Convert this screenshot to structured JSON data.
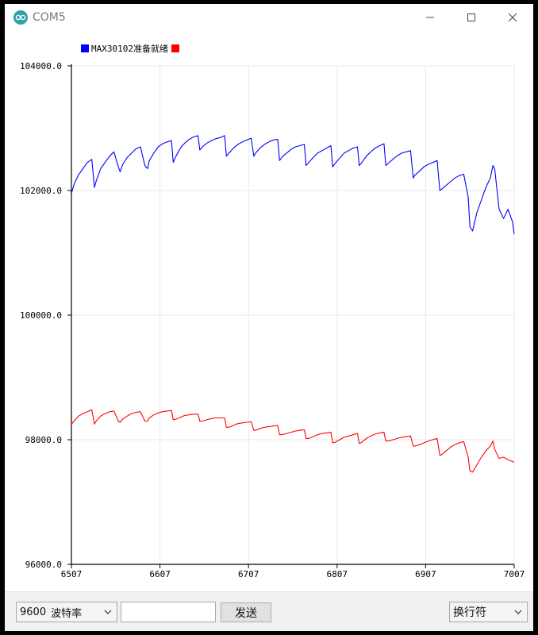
{
  "window": {
    "title": "COM5",
    "icons": {
      "app": "arduino-logo-icon",
      "minimize": "minimize-icon",
      "maximize": "maximize-icon",
      "close": "close-icon"
    }
  },
  "toolbar": {
    "baud_rate_value": "9600",
    "baud_rate_label": "波特率",
    "message_input_value": "",
    "send_label": "发送",
    "line_ending_label": "换行符"
  },
  "colors": {
    "series_1": "#0000ff",
    "series_2": "#ff0000",
    "axis": "#000000",
    "grid": "#e8e8e8"
  },
  "chart_data": {
    "type": "line",
    "title": "",
    "xlabel": "",
    "ylabel": "",
    "xlim": [
      6507,
      7007
    ],
    "ylim": [
      96000,
      104000
    ],
    "x_ticks": [
      "6507",
      "6607",
      "6707",
      "6807",
      "6907",
      "7007"
    ],
    "y_ticks": [
      "96000.0",
      "98000.0",
      "100000.0",
      "102000.0",
      "104000.0"
    ],
    "grid": true,
    "legend": "top-left",
    "legend_text": "MAX30102准备就绪",
    "series": [
      {
        "name": "MAX30102准备就绪",
        "color": "#0000ff",
        "x": [
          6507,
          6510,
          6515,
          6520,
          6525,
          6530,
          6533,
          6535,
          6540,
          6545,
          6550,
          6555,
          6560,
          6562,
          6565,
          6570,
          6575,
          6580,
          6585,
          6590,
          6593,
          6595,
          6600,
          6605,
          6610,
          6615,
          6620,
          6622,
          6625,
          6630,
          6635,
          6640,
          6645,
          6650,
          6652,
          6655,
          6660,
          6665,
          6670,
          6675,
          6680,
          6682,
          6685,
          6690,
          6695,
          6700,
          6705,
          6710,
          6713,
          6715,
          6720,
          6725,
          6730,
          6735,
          6740,
          6742,
          6745,
          6750,
          6755,
          6760,
          6765,
          6770,
          6772,
          6775,
          6780,
          6785,
          6790,
          6795,
          6800,
          6802,
          6805,
          6810,
          6815,
          6820,
          6825,
          6830,
          6832,
          6835,
          6840,
          6845,
          6850,
          6855,
          6860,
          6862,
          6865,
          6870,
          6875,
          6880,
          6885,
          6890,
          6893,
          6895,
          6900,
          6905,
          6910,
          6915,
          6920,
          6923,
          6925,
          6930,
          6935,
          6940,
          6945,
          6950,
          6955,
          6957,
          6960,
          6965,
          6970,
          6975,
          6980,
          6983,
          6985,
          6990,
          6995,
          7000,
          7005,
          7007
        ],
        "y": [
          101950,
          102100,
          102250,
          102350,
          102450,
          102500,
          102050,
          102150,
          102350,
          102450,
          102550,
          102620,
          102380,
          102300,
          102420,
          102530,
          102600,
          102670,
          102700,
          102400,
          102350,
          102480,
          102600,
          102700,
          102750,
          102780,
          102800,
          102450,
          102550,
          102680,
          102760,
          102820,
          102860,
          102880,
          102650,
          102700,
          102760,
          102800,
          102830,
          102850,
          102880,
          102550,
          102600,
          102680,
          102740,
          102780,
          102810,
          102840,
          102550,
          102600,
          102680,
          102740,
          102780,
          102810,
          102820,
          102480,
          102540,
          102600,
          102660,
          102700,
          102720,
          102740,
          102400,
          102450,
          102530,
          102600,
          102640,
          102680,
          102720,
          102380,
          102440,
          102520,
          102600,
          102640,
          102680,
          102700,
          102400,
          102450,
          102550,
          102620,
          102680,
          102720,
          102750,
          102400,
          102440,
          102500,
          102560,
          102600,
          102620,
          102640,
          102200,
          102250,
          102310,
          102380,
          102420,
          102450,
          102480,
          102000,
          102020,
          102080,
          102140,
          102200,
          102240,
          102260,
          101900,
          101420,
          101350,
          101650,
          101850,
          102050,
          102200,
          102400,
          102350,
          101700,
          101550,
          101700,
          101500,
          101300
        ]
      },
      {
        "name": "",
        "color": "#ff0000",
        "x": [
          6507,
          6510,
          6515,
          6520,
          6525,
          6530,
          6533,
          6535,
          6540,
          6545,
          6550,
          6555,
          6560,
          6562,
          6565,
          6570,
          6575,
          6580,
          6585,
          6590,
          6593,
          6595,
          6600,
          6605,
          6610,
          6615,
          6620,
          6622,
          6625,
          6630,
          6635,
          6640,
          6645,
          6650,
          6652,
          6655,
          6660,
          6665,
          6670,
          6675,
          6680,
          6682,
          6685,
          6690,
          6695,
          6700,
          6705,
          6710,
          6713,
          6715,
          6720,
          6725,
          6730,
          6735,
          6740,
          6742,
          6745,
          6750,
          6755,
          6760,
          6765,
          6770,
          6772,
          6775,
          6780,
          6785,
          6790,
          6795,
          6800,
          6802,
          6805,
          6810,
          6815,
          6820,
          6825,
          6830,
          6832,
          6835,
          6840,
          6845,
          6850,
          6855,
          6860,
          6862,
          6865,
          6870,
          6875,
          6880,
          6885,
          6890,
          6893,
          6895,
          6900,
          6905,
          6910,
          6915,
          6920,
          6923,
          6925,
          6930,
          6935,
          6940,
          6945,
          6950,
          6955,
          6957,
          6960,
          6965,
          6970,
          6975,
          6980,
          6983,
          6985,
          6990,
          6995,
          7000,
          7005,
          7007
        ],
        "y": [
          98250,
          98300,
          98380,
          98420,
          98450,
          98480,
          98250,
          98300,
          98380,
          98420,
          98450,
          98460,
          98300,
          98280,
          98330,
          98380,
          98420,
          98440,
          98450,
          98300,
          98300,
          98350,
          98400,
          98430,
          98450,
          98460,
          98470,
          98320,
          98330,
          98360,
          98390,
          98400,
          98410,
          98410,
          98300,
          98300,
          98320,
          98340,
          98350,
          98350,
          98350,
          98200,
          98200,
          98230,
          98260,
          98270,
          98280,
          98290,
          98150,
          98150,
          98180,
          98200,
          98210,
          98220,
          98230,
          98080,
          98080,
          98100,
          98120,
          98140,
          98150,
          98160,
          98020,
          98020,
          98050,
          98080,
          98100,
          98110,
          98120,
          97950,
          97960,
          98000,
          98040,
          98060,
          98080,
          98100,
          97940,
          97960,
          98020,
          98060,
          98090,
          98110,
          98120,
          97980,
          97980,
          98000,
          98020,
          98040,
          98050,
          98060,
          97900,
          97900,
          97920,
          97950,
          97980,
          98000,
          98020,
          97750,
          97760,
          97820,
          97880,
          97920,
          97950,
          97970,
          97720,
          97500,
          97480,
          97600,
          97720,
          97820,
          97900,
          97980,
          97850,
          97700,
          97720,
          97680,
          97650,
          97640
        ]
      }
    ]
  }
}
